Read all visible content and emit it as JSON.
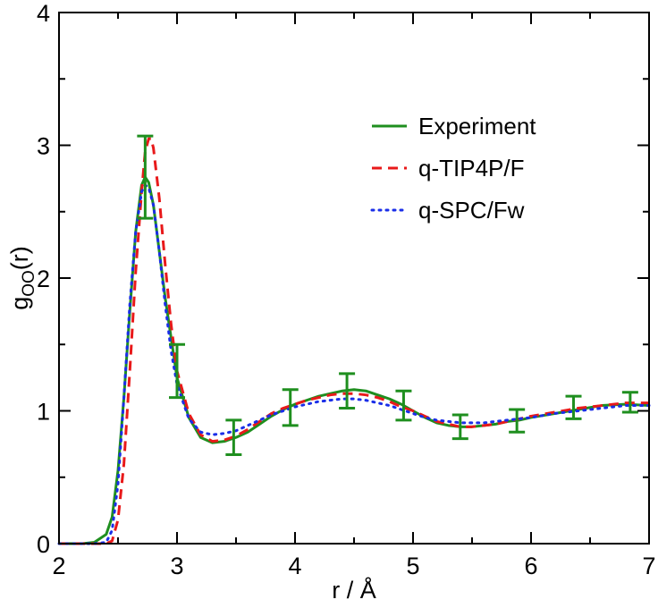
{
  "chart_data": {
    "type": "line",
    "title": "",
    "xlabel": "r / Å",
    "ylabel": {
      "main": "g",
      "subscript": "OO",
      "suffix": "(r)"
    },
    "xlim": [
      2,
      7
    ],
    "ylim": [
      0,
      4
    ],
    "xticks": [
      2,
      3,
      4,
      5,
      6,
      7
    ],
    "yticks": [
      0,
      1,
      2,
      3,
      4
    ],
    "x_tick_labels": [
      "2",
      "3",
      "4",
      "5",
      "6",
      "7"
    ],
    "y_tick_labels": [
      "0",
      "1",
      "2",
      "3",
      "4"
    ],
    "grid": false,
    "legend_position": "top-right",
    "series": [
      {
        "name": "Experiment",
        "color": "#1f8f1f",
        "style": "solid",
        "x": [
          2.0,
          2.2,
          2.3,
          2.4,
          2.45,
          2.5,
          2.55,
          2.6,
          2.65,
          2.7,
          2.73,
          2.76,
          2.8,
          2.85,
          2.9,
          3.0,
          3.1,
          3.2,
          3.3,
          3.4,
          3.5,
          3.6,
          3.7,
          3.8,
          3.9,
          4.0,
          4.1,
          4.2,
          4.3,
          4.4,
          4.5,
          4.6,
          4.7,
          4.8,
          4.9,
          5.0,
          5.1,
          5.2,
          5.3,
          5.4,
          5.5,
          5.6,
          5.7,
          5.8,
          5.9,
          6.0,
          6.2,
          6.4,
          6.6,
          6.8,
          7.0
        ],
        "y": [
          0.0,
          0.0,
          0.01,
          0.07,
          0.2,
          0.55,
          1.1,
          1.75,
          2.35,
          2.7,
          2.76,
          2.72,
          2.55,
          2.2,
          1.85,
          1.25,
          0.95,
          0.8,
          0.76,
          0.77,
          0.8,
          0.84,
          0.9,
          0.96,
          1.01,
          1.05,
          1.08,
          1.11,
          1.13,
          1.15,
          1.16,
          1.15,
          1.12,
          1.09,
          1.05,
          1.0,
          0.95,
          0.91,
          0.89,
          0.88,
          0.88,
          0.89,
          0.9,
          0.92,
          0.93,
          0.95,
          0.98,
          1.01,
          1.04,
          1.05,
          1.04
        ]
      },
      {
        "name": "q-TIP4P/F",
        "color": "#e8191a",
        "style": "dashed",
        "x": [
          2.0,
          2.3,
          2.4,
          2.45,
          2.5,
          2.55,
          2.6,
          2.65,
          2.7,
          2.73,
          2.76,
          2.78,
          2.8,
          2.85,
          2.9,
          2.95,
          3.0,
          3.1,
          3.2,
          3.3,
          3.4,
          3.5,
          3.6,
          3.7,
          3.8,
          3.9,
          4.0,
          4.1,
          4.2,
          4.3,
          4.4,
          4.5,
          4.6,
          4.7,
          4.8,
          4.9,
          5.0,
          5.1,
          5.2,
          5.3,
          5.4,
          5.5,
          5.6,
          5.7,
          5.8,
          5.9,
          6.0,
          6.2,
          6.4,
          6.6,
          6.8,
          7.0
        ],
        "y": [
          0.0,
          0.0,
          0.0,
          0.02,
          0.18,
          0.6,
          1.3,
          2.05,
          2.65,
          2.95,
          3.05,
          3.05,
          2.98,
          2.6,
          2.1,
          1.65,
          1.3,
          0.98,
          0.82,
          0.77,
          0.78,
          0.81,
          0.86,
          0.92,
          0.98,
          1.02,
          1.05,
          1.08,
          1.1,
          1.12,
          1.13,
          1.13,
          1.12,
          1.1,
          1.07,
          1.03,
          1.0,
          0.96,
          0.92,
          0.9,
          0.88,
          0.88,
          0.89,
          0.9,
          0.92,
          0.94,
          0.96,
          0.99,
          1.02,
          1.04,
          1.06,
          1.06
        ]
      },
      {
        "name": "q-SPC/Fw",
        "color": "#1a2ee8",
        "style": "dotted",
        "x": [
          2.0,
          2.3,
          2.4,
          2.45,
          2.5,
          2.55,
          2.6,
          2.65,
          2.7,
          2.73,
          2.76,
          2.8,
          2.85,
          2.9,
          2.95,
          3.0,
          3.1,
          3.2,
          3.3,
          3.4,
          3.5,
          3.6,
          3.7,
          3.8,
          3.9,
          4.0,
          4.1,
          4.2,
          4.3,
          4.4,
          4.5,
          4.6,
          4.7,
          4.8,
          4.9,
          5.0,
          5.1,
          5.2,
          5.3,
          5.4,
          5.5,
          5.6,
          5.7,
          5.8,
          5.9,
          6.0,
          6.2,
          6.4,
          6.6,
          6.8,
          7.0
        ],
        "y": [
          0.0,
          0.0,
          0.01,
          0.1,
          0.45,
          1.1,
          1.8,
          2.35,
          2.65,
          2.7,
          2.68,
          2.55,
          2.2,
          1.8,
          1.45,
          1.2,
          0.94,
          0.84,
          0.82,
          0.83,
          0.85,
          0.89,
          0.93,
          0.97,
          1.0,
          1.03,
          1.05,
          1.07,
          1.08,
          1.09,
          1.09,
          1.08,
          1.06,
          1.04,
          1.01,
          0.98,
          0.95,
          0.93,
          0.92,
          0.91,
          0.91,
          0.91,
          0.92,
          0.93,
          0.94,
          0.95,
          0.98,
          1.0,
          1.02,
          1.04,
          1.04
        ]
      }
    ],
    "error_bars": {
      "series": "Experiment",
      "color": "#1f8f1f",
      "points": [
        {
          "x": 2.73,
          "y": 2.75,
          "lower": 2.45,
          "upper": 3.07
        },
        {
          "x": 3.0,
          "y": 1.3,
          "lower": 1.1,
          "upper": 1.5
        },
        {
          "x": 3.48,
          "y": 0.8,
          "lower": 0.67,
          "upper": 0.93
        },
        {
          "x": 3.96,
          "y": 1.02,
          "lower": 0.89,
          "upper": 1.16
        },
        {
          "x": 4.44,
          "y": 1.15,
          "lower": 1.02,
          "upper": 1.28
        },
        {
          "x": 4.92,
          "y": 1.04,
          "lower": 0.93,
          "upper": 1.15
        },
        {
          "x": 5.4,
          "y": 0.88,
          "lower": 0.79,
          "upper": 0.97
        },
        {
          "x": 5.88,
          "y": 0.92,
          "lower": 0.84,
          "upper": 1.01
        },
        {
          "x": 6.36,
          "y": 1.02,
          "lower": 0.94,
          "upper": 1.11
        },
        {
          "x": 6.84,
          "y": 1.06,
          "lower": 0.99,
          "upper": 1.14
        }
      ]
    }
  }
}
